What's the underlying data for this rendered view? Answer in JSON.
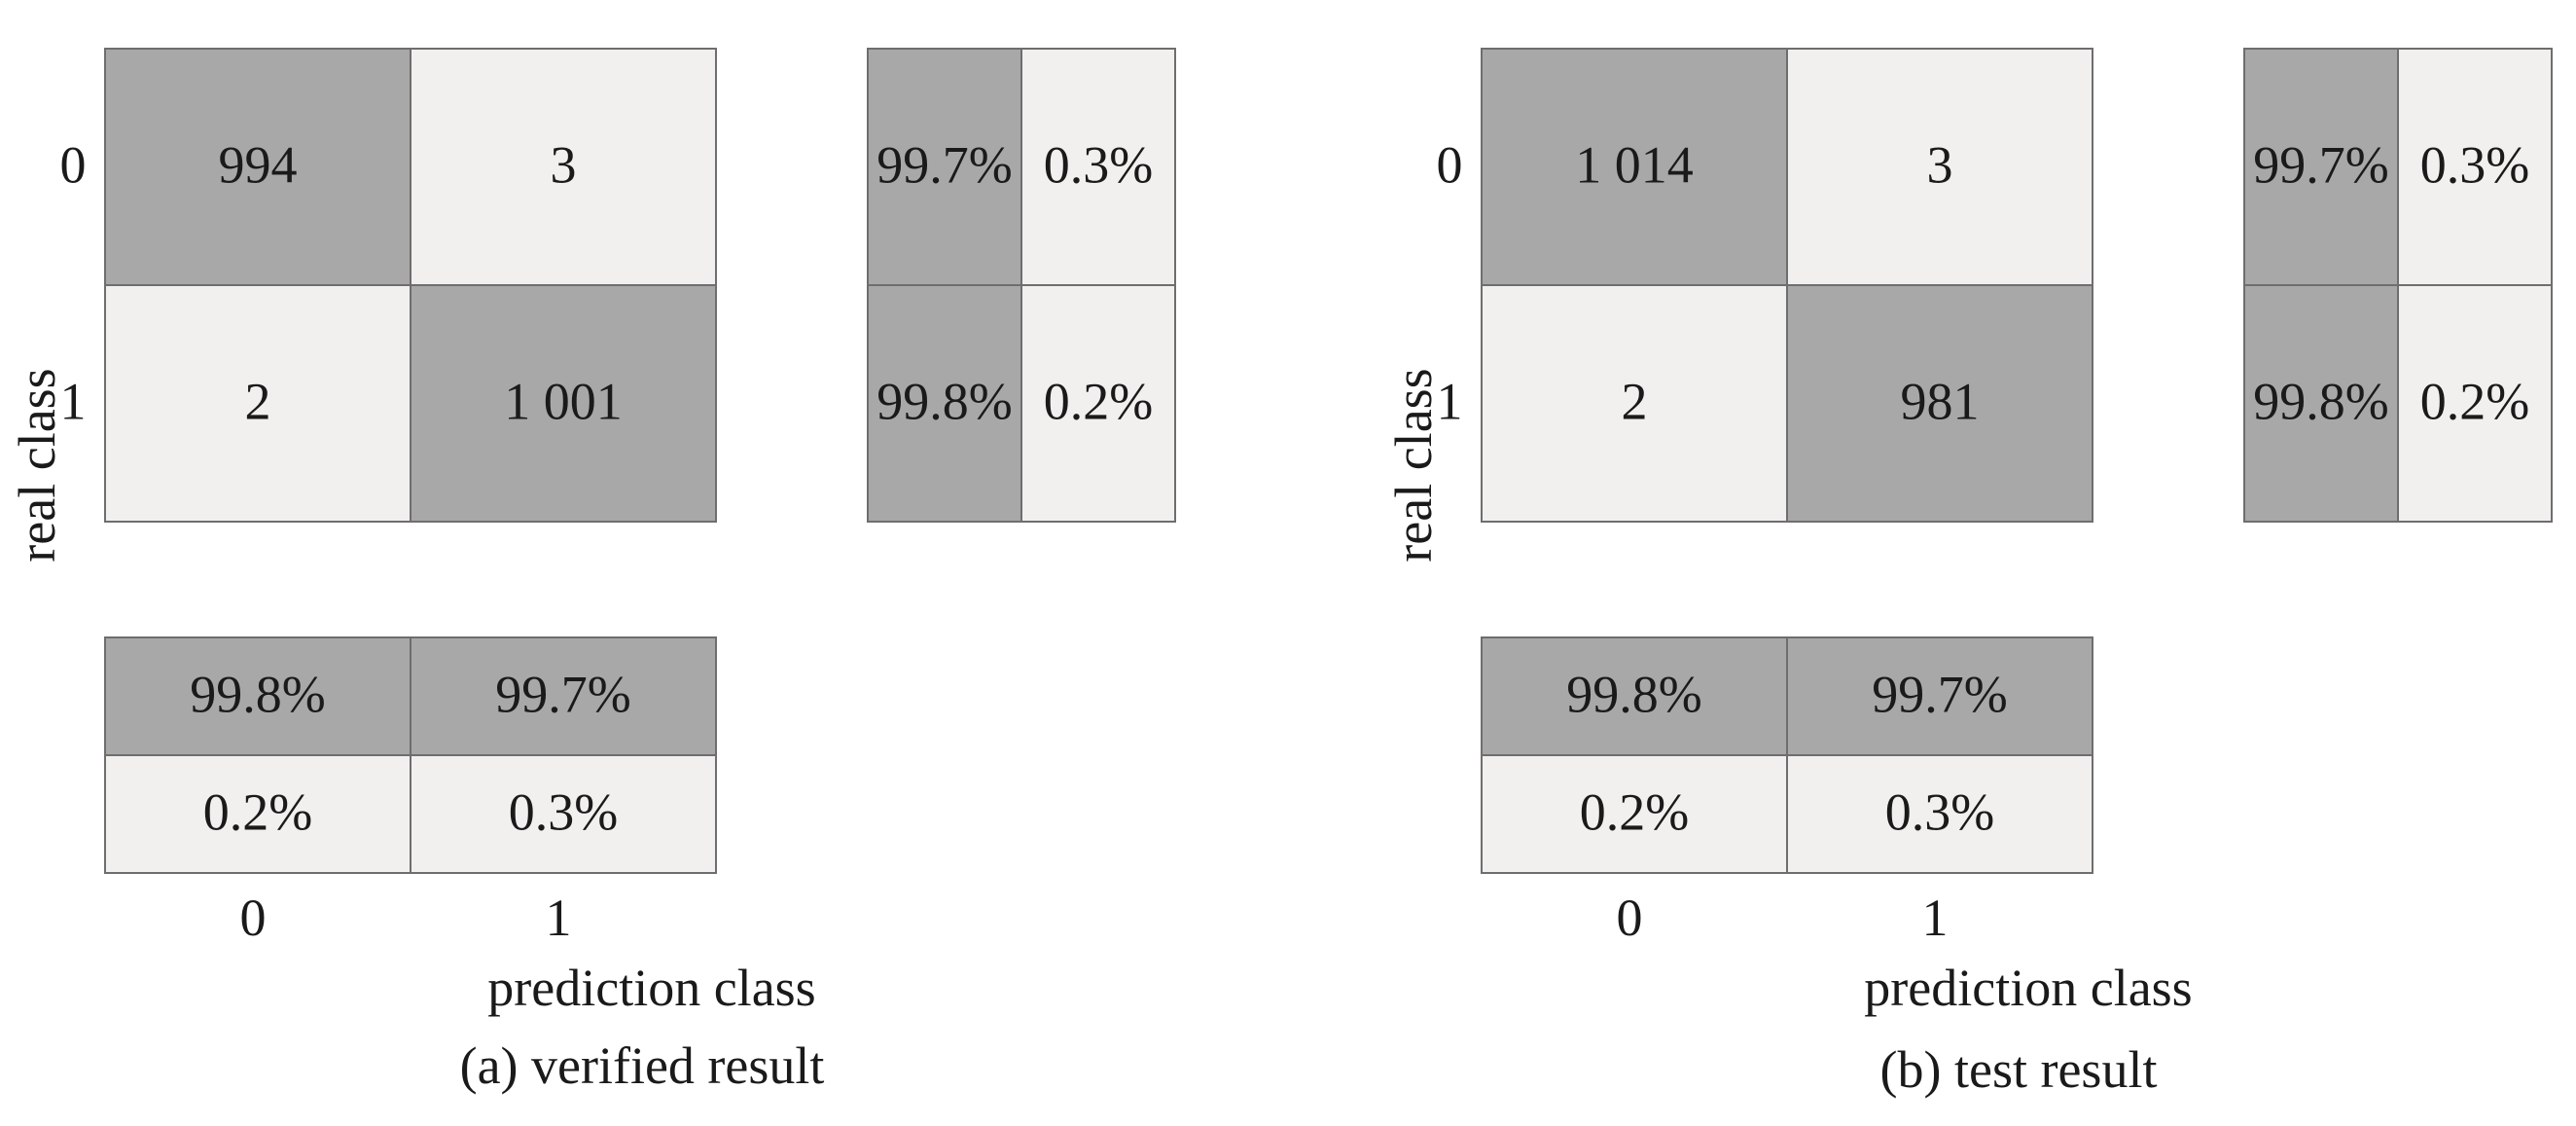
{
  "colors": {
    "dark": "#a8a8a8",
    "light": "#f1f0ee",
    "border": "#6e6e6e",
    "text": "#1a1a1a"
  },
  "chart_data": [
    {
      "type": "table",
      "caption": "(a) verified result",
      "xlabel": "prediction class",
      "ylabel": "real class",
      "row_ticks": [
        "0",
        "1"
      ],
      "col_ticks": [
        "0",
        "1"
      ],
      "matrix": [
        [
          "994",
          "3"
        ],
        [
          "2",
          "1 001"
        ]
      ],
      "row_summary": [
        [
          "99.7%",
          "0.3%"
        ],
        [
          "99.8%",
          "0.2%"
        ]
      ],
      "col_summary": [
        [
          "99.8%",
          "99.7%"
        ],
        [
          "0.2%",
          "0.3%"
        ]
      ]
    },
    {
      "type": "table",
      "caption": "(b) test result",
      "xlabel": "prediction class",
      "ylabel": "real class",
      "row_ticks": [
        "0",
        "1"
      ],
      "col_ticks": [
        "0",
        "1"
      ],
      "matrix": [
        [
          "1 014",
          "3"
        ],
        [
          "2",
          "981"
        ]
      ],
      "row_summary": [
        [
          "99.7%",
          "0.3%"
        ],
        [
          "99.8%",
          "0.2%"
        ]
      ],
      "col_summary": [
        [
          "99.8%",
          "99.7%"
        ],
        [
          "0.2%",
          "0.3%"
        ]
      ]
    }
  ]
}
